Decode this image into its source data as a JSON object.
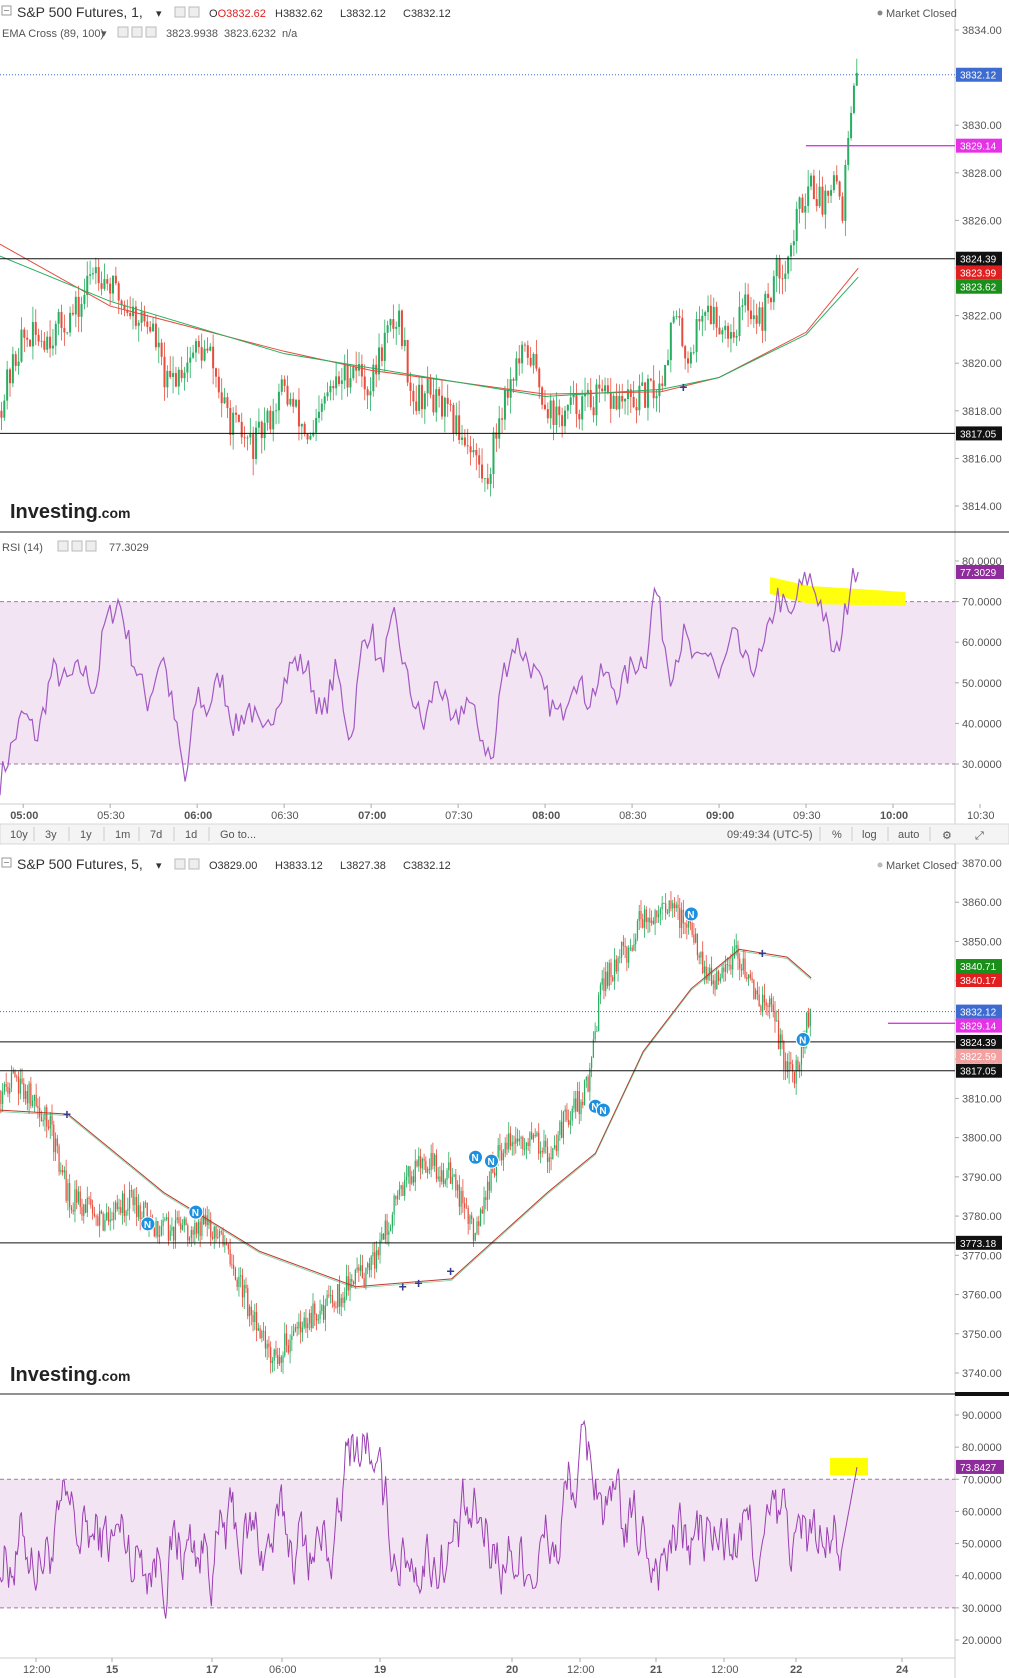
{
  "top": {
    "title": "S&P 500 Futures, 1,",
    "ohlc": {
      "o": "O3832.62",
      "h": "H3832.62",
      "l": "L3832.12",
      "c": "C3832.12"
    },
    "market_status": "Market Closed",
    "ema_label": "EMA Cross (89, 100)",
    "ema_v1": "3823.9938",
    "ema_v2": "3823.6232",
    "ema_v3": "n/a",
    "rsi_label": "RSI (14)",
    "rsi_value": "77.3029",
    "logo_main": "Investing",
    "logo_suffix": ".com",
    "price_ticks": [
      "3834.00",
      "3832.00",
      "3830.00",
      "3828.00",
      "3826.00",
      "3824.00",
      "3822.00",
      "3820.00",
      "3818.00",
      "3816.00",
      "3814.00"
    ],
    "rsi_ticks": [
      "80.0000",
      "70.0000",
      "60.0000",
      "50.0000",
      "40.0000",
      "30.0000"
    ],
    "time_ticks": [
      "05:00",
      "05:30",
      "06:00",
      "06:30",
      "07:00",
      "07:30",
      "08:00",
      "08:30",
      "09:00",
      "09:30",
      "10:00",
      "10:30"
    ],
    "price_tags": [
      {
        "text": "3832.12",
        "color": "#3d6bd0"
      },
      {
        "text": "3829.14",
        "color": "#e632e6"
      },
      {
        "text": "3824.39",
        "color": "#111111"
      },
      {
        "text": "3823.99",
        "color": "#e02020"
      },
      {
        "text": "3823.62",
        "color": "#1a8f1a"
      },
      {
        "text": "3817.05",
        "color": "#111111"
      }
    ],
    "rsi_tag": {
      "text": "77.3029",
      "color": "#8e2c9c"
    },
    "toolbar": {
      "ranges": [
        "10y",
        "3y",
        "1y",
        "1m",
        "7d",
        "1d"
      ],
      "goto": "Go to...",
      "clock": "09:49:34 (UTC-5)",
      "pct": "%",
      "log": "log",
      "auto": "auto"
    }
  },
  "bottom": {
    "title": "S&P 500 Futures, 5,",
    "ohlc": {
      "o": "O3829.00",
      "h": "H3833.12",
      "l": "L3827.38",
      "c": "C3832.12"
    },
    "market_status": "Market Closed",
    "logo_main": "Investing",
    "logo_suffix": ".com",
    "price_ticks": [
      "3870.00",
      "3860.00",
      "3850.00",
      "3840.00",
      "3830.00",
      "3820.00",
      "3810.00",
      "3800.00",
      "3790.00",
      "3780.00",
      "3770.00",
      "3760.00",
      "3750.00",
      "3740.00"
    ],
    "rsi_ticks": [
      "90.0000",
      "80.0000",
      "70.0000",
      "60.0000",
      "50.0000",
      "40.0000",
      "30.0000",
      "20.0000"
    ],
    "time_ticks": [
      "12:00",
      "15",
      "17",
      "06:00",
      "19",
      "20",
      "12:00",
      "21",
      "12:00",
      "22",
      "24"
    ],
    "price_tags": [
      {
        "text": "3840.71",
        "color": "#1a8f1a"
      },
      {
        "text": "3840.17",
        "color": "#e02020"
      },
      {
        "text": "3832.12",
        "color": "#3d6bd0"
      },
      {
        "text": "3829.14",
        "color": "#e632e6"
      },
      {
        "text": "3824.39",
        "color": "#111111"
      },
      {
        "text": "3822.59",
        "color": "#f2a0a0"
      },
      {
        "text": "3817.05",
        "color": "#111111"
      },
      {
        "text": "3773.18",
        "color": "#111111"
      }
    ],
    "rsi_tag": {
      "text": "73.8427",
      "color": "#8e2c9c"
    }
  },
  "chart_data": [
    {
      "type": "candlestick",
      "title": "S&P 500 Futures, 1",
      "timeframe_minutes": 1,
      "x_range": [
        "04:52",
        "10:40"
      ],
      "ylim": [
        3812.5,
        3834.8
      ],
      "ohlc_last": {
        "open": 3832.62,
        "high": 3832.62,
        "low": 3832.12,
        "close": 3832.12
      },
      "close_points": [
        [
          "04:52",
          3818.0
        ],
        [
          "05:00",
          3821.0
        ],
        [
          "05:10",
          3821.2
        ],
        [
          "05:20",
          3822.3
        ],
        [
          "05:25",
          3824.2
        ],
        [
          "05:35",
          3822.5
        ],
        [
          "05:45",
          3821.5
        ],
        [
          "05:50",
          3819.0
        ],
        [
          "06:00",
          3820.6
        ],
        [
          "06:05",
          3820.3
        ],
        [
          "06:10",
          3818.0
        ],
        [
          "06:15",
          3817.0
        ],
        [
          "06:20",
          3816.5
        ],
        [
          "06:25",
          3817.6
        ],
        [
          "06:30",
          3819.0
        ],
        [
          "06:40",
          3816.6
        ],
        [
          "06:45",
          3818.6
        ],
        [
          "06:55",
          3820.0
        ],
        [
          "07:00",
          3818.9
        ],
        [
          "07:05",
          3821.0
        ],
        [
          "07:10",
          3822.0
        ],
        [
          "07:15",
          3818.5
        ],
        [
          "07:20",
          3818.8
        ],
        [
          "07:30",
          3817.3
        ],
        [
          "07:35",
          3816.6
        ],
        [
          "07:40",
          3814.8
        ],
        [
          "07:45",
          3818.0
        ],
        [
          "07:50",
          3819.8
        ],
        [
          "07:55",
          3820.5
        ],
        [
          "08:00",
          3818.5
        ],
        [
          "08:05",
          3817.6
        ],
        [
          "08:10",
          3818.2
        ],
        [
          "08:20",
          3818.5
        ],
        [
          "08:30",
          3818.3
        ],
        [
          "08:40",
          3819.0
        ],
        [
          "08:45",
          3822.0
        ],
        [
          "08:50",
          3820.2
        ],
        [
          "08:55",
          3822.4
        ],
        [
          "09:05",
          3821.3
        ],
        [
          "09:10",
          3822.6
        ],
        [
          "09:15",
          3821.8
        ],
        [
          "09:20",
          3823.7
        ],
        [
          "09:25",
          3824.6
        ],
        [
          "09:28",
          3826.4
        ],
        [
          "09:32",
          3827.8
        ],
        [
          "09:36",
          3826.6
        ],
        [
          "09:40",
          3828.3
        ],
        [
          "09:43",
          3826.5
        ],
        [
          "09:45",
          3829.2
        ],
        [
          "09:47",
          3831.2
        ],
        [
          "09:48",
          3832.12
        ]
      ],
      "ema_fast_points": [
        [
          "04:52",
          3825.0
        ],
        [
          "05:30",
          3822.4
        ],
        [
          "06:30",
          3820.5
        ],
        [
          "07:00",
          3819.7
        ],
        [
          "08:00",
          3818.7
        ],
        [
          "08:40",
          3818.8
        ],
        [
          "09:00",
          3819.4
        ],
        [
          "09:30",
          3821.3
        ],
        [
          "09:48",
          3823.99
        ]
      ],
      "ema_slow_points": [
        [
          "04:52",
          3824.5
        ],
        [
          "05:30",
          3822.6
        ],
        [
          "06:30",
          3820.4
        ],
        [
          "07:00",
          3819.8
        ],
        [
          "08:00",
          3818.6
        ],
        [
          "08:40",
          3818.9
        ],
        [
          "09:00",
          3819.4
        ],
        [
          "09:30",
          3821.2
        ],
        [
          "09:48",
          3823.62
        ]
      ],
      "horizontal_levels": [
        3832.12,
        3829.14,
        3824.39,
        3817.05
      ],
      "signal_markers": [
        {
          "time": "08:48",
          "value": 3819.0,
          "type": "cross"
        }
      ]
    },
    {
      "type": "line",
      "title": "RSI (14)",
      "x_range": [
        "04:52",
        "10:40"
      ],
      "ylim": [
        25,
        82
      ],
      "band": [
        30,
        70
      ],
      "points": [
        [
          "04:52",
          25.8
        ],
        [
          "05:00",
          42.5
        ],
        [
          "05:05",
          36.5
        ],
        [
          "05:10",
          53.2
        ],
        [
          "05:15",
          50.1
        ],
        [
          "05:20",
          53.6
        ],
        [
          "05:25",
          48.2
        ],
        [
          "05:28",
          64.1
        ],
        [
          "05:33",
          70.4
        ],
        [
          "05:38",
          55.3
        ],
        [
          "05:43",
          45.1
        ],
        [
          "05:48",
          57.6
        ],
        [
          "05:53",
          37.9
        ],
        [
          "05:56",
          24.8
        ],
        [
          "06:00",
          48.4
        ],
        [
          "06:03",
          42.5
        ],
        [
          "06:08",
          51.8
        ],
        [
          "06:13",
          38.5
        ],
        [
          "06:18",
          44.4
        ],
        [
          "06:23",
          35.7
        ],
        [
          "06:28",
          46.9
        ],
        [
          "06:33",
          55.2
        ],
        [
          "06:38",
          53.7
        ],
        [
          "06:43",
          41.2
        ],
        [
          "06:48",
          53.5
        ],
        [
          "06:53",
          35.3
        ],
        [
          "06:57",
          59.4
        ],
        [
          "07:00",
          63.8
        ],
        [
          "07:03",
          52.5
        ],
        [
          "07:08",
          65.5
        ],
        [
          "07:13",
          49.0
        ],
        [
          "07:18",
          39.1
        ],
        [
          "07:23",
          51.4
        ],
        [
          "07:28",
          38.3
        ],
        [
          "07:33",
          46.4
        ],
        [
          "07:38",
          37.1
        ],
        [
          "07:42",
          29.8
        ],
        [
          "07:45",
          51.7
        ],
        [
          "07:50",
          60.1
        ],
        [
          "07:55",
          54.3
        ],
        [
          "08:00",
          46.8
        ],
        [
          "08:05",
          41.3
        ],
        [
          "08:10",
          52.0
        ],
        [
          "08:15",
          45.5
        ],
        [
          "08:20",
          52.4
        ],
        [
          "08:25",
          47.7
        ],
        [
          "08:30",
          54.3
        ],
        [
          "08:35",
          56.6
        ],
        [
          "08:38",
          74.6
        ],
        [
          "08:43",
          52.1
        ],
        [
          "08:48",
          61.8
        ],
        [
          "08:52",
          53.9
        ],
        [
          "08:57",
          58.3
        ],
        [
          "09:00",
          50.6
        ],
        [
          "09:05",
          61.9
        ],
        [
          "09:10",
          53.3
        ],
        [
          "09:15",
          56.5
        ],
        [
          "09:20",
          71.6
        ],
        [
          "09:25",
          65.4
        ],
        [
          "09:27",
          72.1
        ],
        [
          "09:31",
          76.2
        ],
        [
          "09:35",
          69.8
        ],
        [
          "09:40",
          55.4
        ],
        [
          "09:44",
          68.7
        ],
        [
          "09:46",
          79.1
        ],
        [
          "09:48",
          77.3
        ]
      ],
      "annotation": "yellow marker near 70 level 09:30-10:20"
    },
    {
      "type": "candlestick",
      "title": "S&P 500 Futures, 5",
      "timeframe_minutes": 5,
      "x_range": [
        "14 12:00",
        "24 00:00"
      ],
      "ylim": [
        3734,
        3872
      ],
      "ohlc_last": {
        "open": 3829.0,
        "high": 3833.12,
        "low": 3827.38,
        "close": 3832.12
      },
      "close_points": [
        [
          "14 07:00",
          3812
        ],
        [
          "14 12:00",
          3814
        ],
        [
          "14 20:00",
          3802
        ],
        [
          "15 00:00",
          3786
        ],
        [
          "15 08:00",
          3779
        ],
        [
          "15 16:00",
          3784
        ],
        [
          "16 00:00",
          3776
        ],
        [
          "16 12:00",
          3778
        ],
        [
          "17 00:00",
          3752
        ],
        [
          "17 04:00",
          3744
        ],
        [
          "17 12:00",
          3753
        ],
        [
          "17 20:00",
          3760
        ],
        [
          "18 04:00",
          3766
        ],
        [
          "18 12:00",
          3788
        ],
        [
          "18 16:00",
          3794
        ],
        [
          "19 00:00",
          3791
        ],
        [
          "19 06:00",
          3776
        ],
        [
          "19 12:00",
          3797
        ],
        [
          "19 20:00",
          3801
        ],
        [
          "20 00:00",
          3796
        ],
        [
          "20 06:00",
          3806
        ],
        [
          "20 10:00",
          3812
        ],
        [
          "20 14:00",
          3840
        ],
        [
          "20 20:00",
          3848
        ],
        [
          "21 00:00",
          3856
        ],
        [
          "21 06:00",
          3859
        ],
        [
          "21 12:00",
          3852
        ],
        [
          "21 18:00",
          3838
        ],
        [
          "22 00:00",
          3847
        ],
        [
          "22 04:00",
          3838
        ],
        [
          "22 08:00",
          3832
        ],
        [
          "22 12:00",
          3818
        ],
        [
          "22 14:00",
          3814
        ],
        [
          "22 16:00",
          3824
        ],
        [
          "22 18:00",
          3832.12
        ]
      ],
      "ema_points": [
        [
          "14 07:00",
          3807
        ],
        [
          "15 00:00",
          3806
        ],
        [
          "16 00:00",
          3786
        ],
        [
          "17 00:00",
          3771
        ],
        [
          "18 00:00",
          3762
        ],
        [
          "19 00:00",
          3764
        ],
        [
          "20 00:00",
          3786
        ],
        [
          "20 12:00",
          3796
        ],
        [
          "21 00:00",
          3822
        ],
        [
          "21 12:00",
          3838
        ],
        [
          "22 00:00",
          3848
        ],
        [
          "22 12:00",
          3846
        ],
        [
          "22 18:00",
          3840.71
        ]
      ],
      "horizontal_levels": [
        3832.12,
        3829.14,
        3824.39,
        3817.05,
        3773.18
      ],
      "signal_markers": [
        {
          "time": "15 00:00",
          "value": 3806,
          "type": "cross"
        },
        {
          "time": "18 12:00",
          "value": 3762,
          "type": "cross"
        },
        {
          "time": "18 16:00",
          "value": 3763,
          "type": "cross"
        },
        {
          "time": "19 00:00",
          "value": 3766,
          "type": "cross"
        },
        {
          "time": "22 06:00",
          "value": 3847,
          "type": "cross"
        },
        {
          "time": "15 20:00",
          "value": 3778,
          "type": "N"
        },
        {
          "time": "16 08:00",
          "value": 3781,
          "type": "N"
        },
        {
          "time": "19 06:00",
          "value": 3795,
          "type": "N"
        },
        {
          "time": "19 10:00",
          "value": 3794,
          "type": "N"
        },
        {
          "time": "20 12:00",
          "value": 3808,
          "type": "N"
        },
        {
          "time": "20 14:00",
          "value": 3807,
          "type": "N"
        },
        {
          "time": "21 12:00",
          "value": 3857,
          "type": "N"
        },
        {
          "time": "22 16:00",
          "value": 3825,
          "type": "N"
        }
      ]
    },
    {
      "type": "line",
      "title": "RSI",
      "x_range": [
        "14 12:00",
        "24 00:00"
      ],
      "ylim": [
        15,
        93
      ],
      "band": [
        30,
        70
      ],
      "last_value": 73.8427,
      "annotation": "yellow marker near 70 level at end of series"
    }
  ]
}
